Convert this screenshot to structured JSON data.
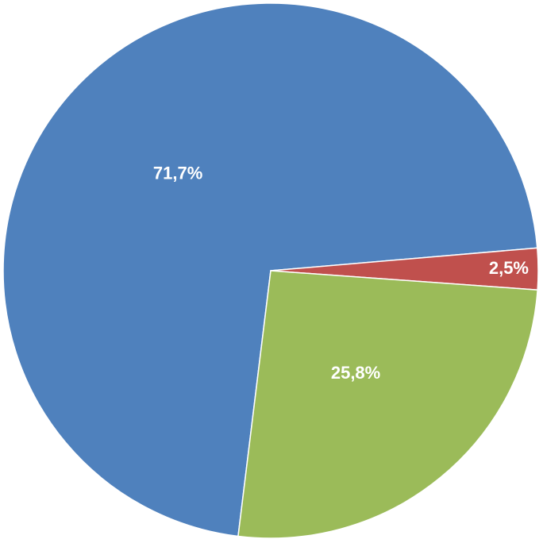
{
  "chart_data": {
    "type": "pie",
    "values": [
      71.7,
      2.5,
      25.8
    ],
    "value_labels": [
      "71,7%",
      "2,5%",
      "25,8%"
    ],
    "colors": [
      "#4f81bd",
      "#c0504d",
      "#9bbb59"
    ]
  }
}
